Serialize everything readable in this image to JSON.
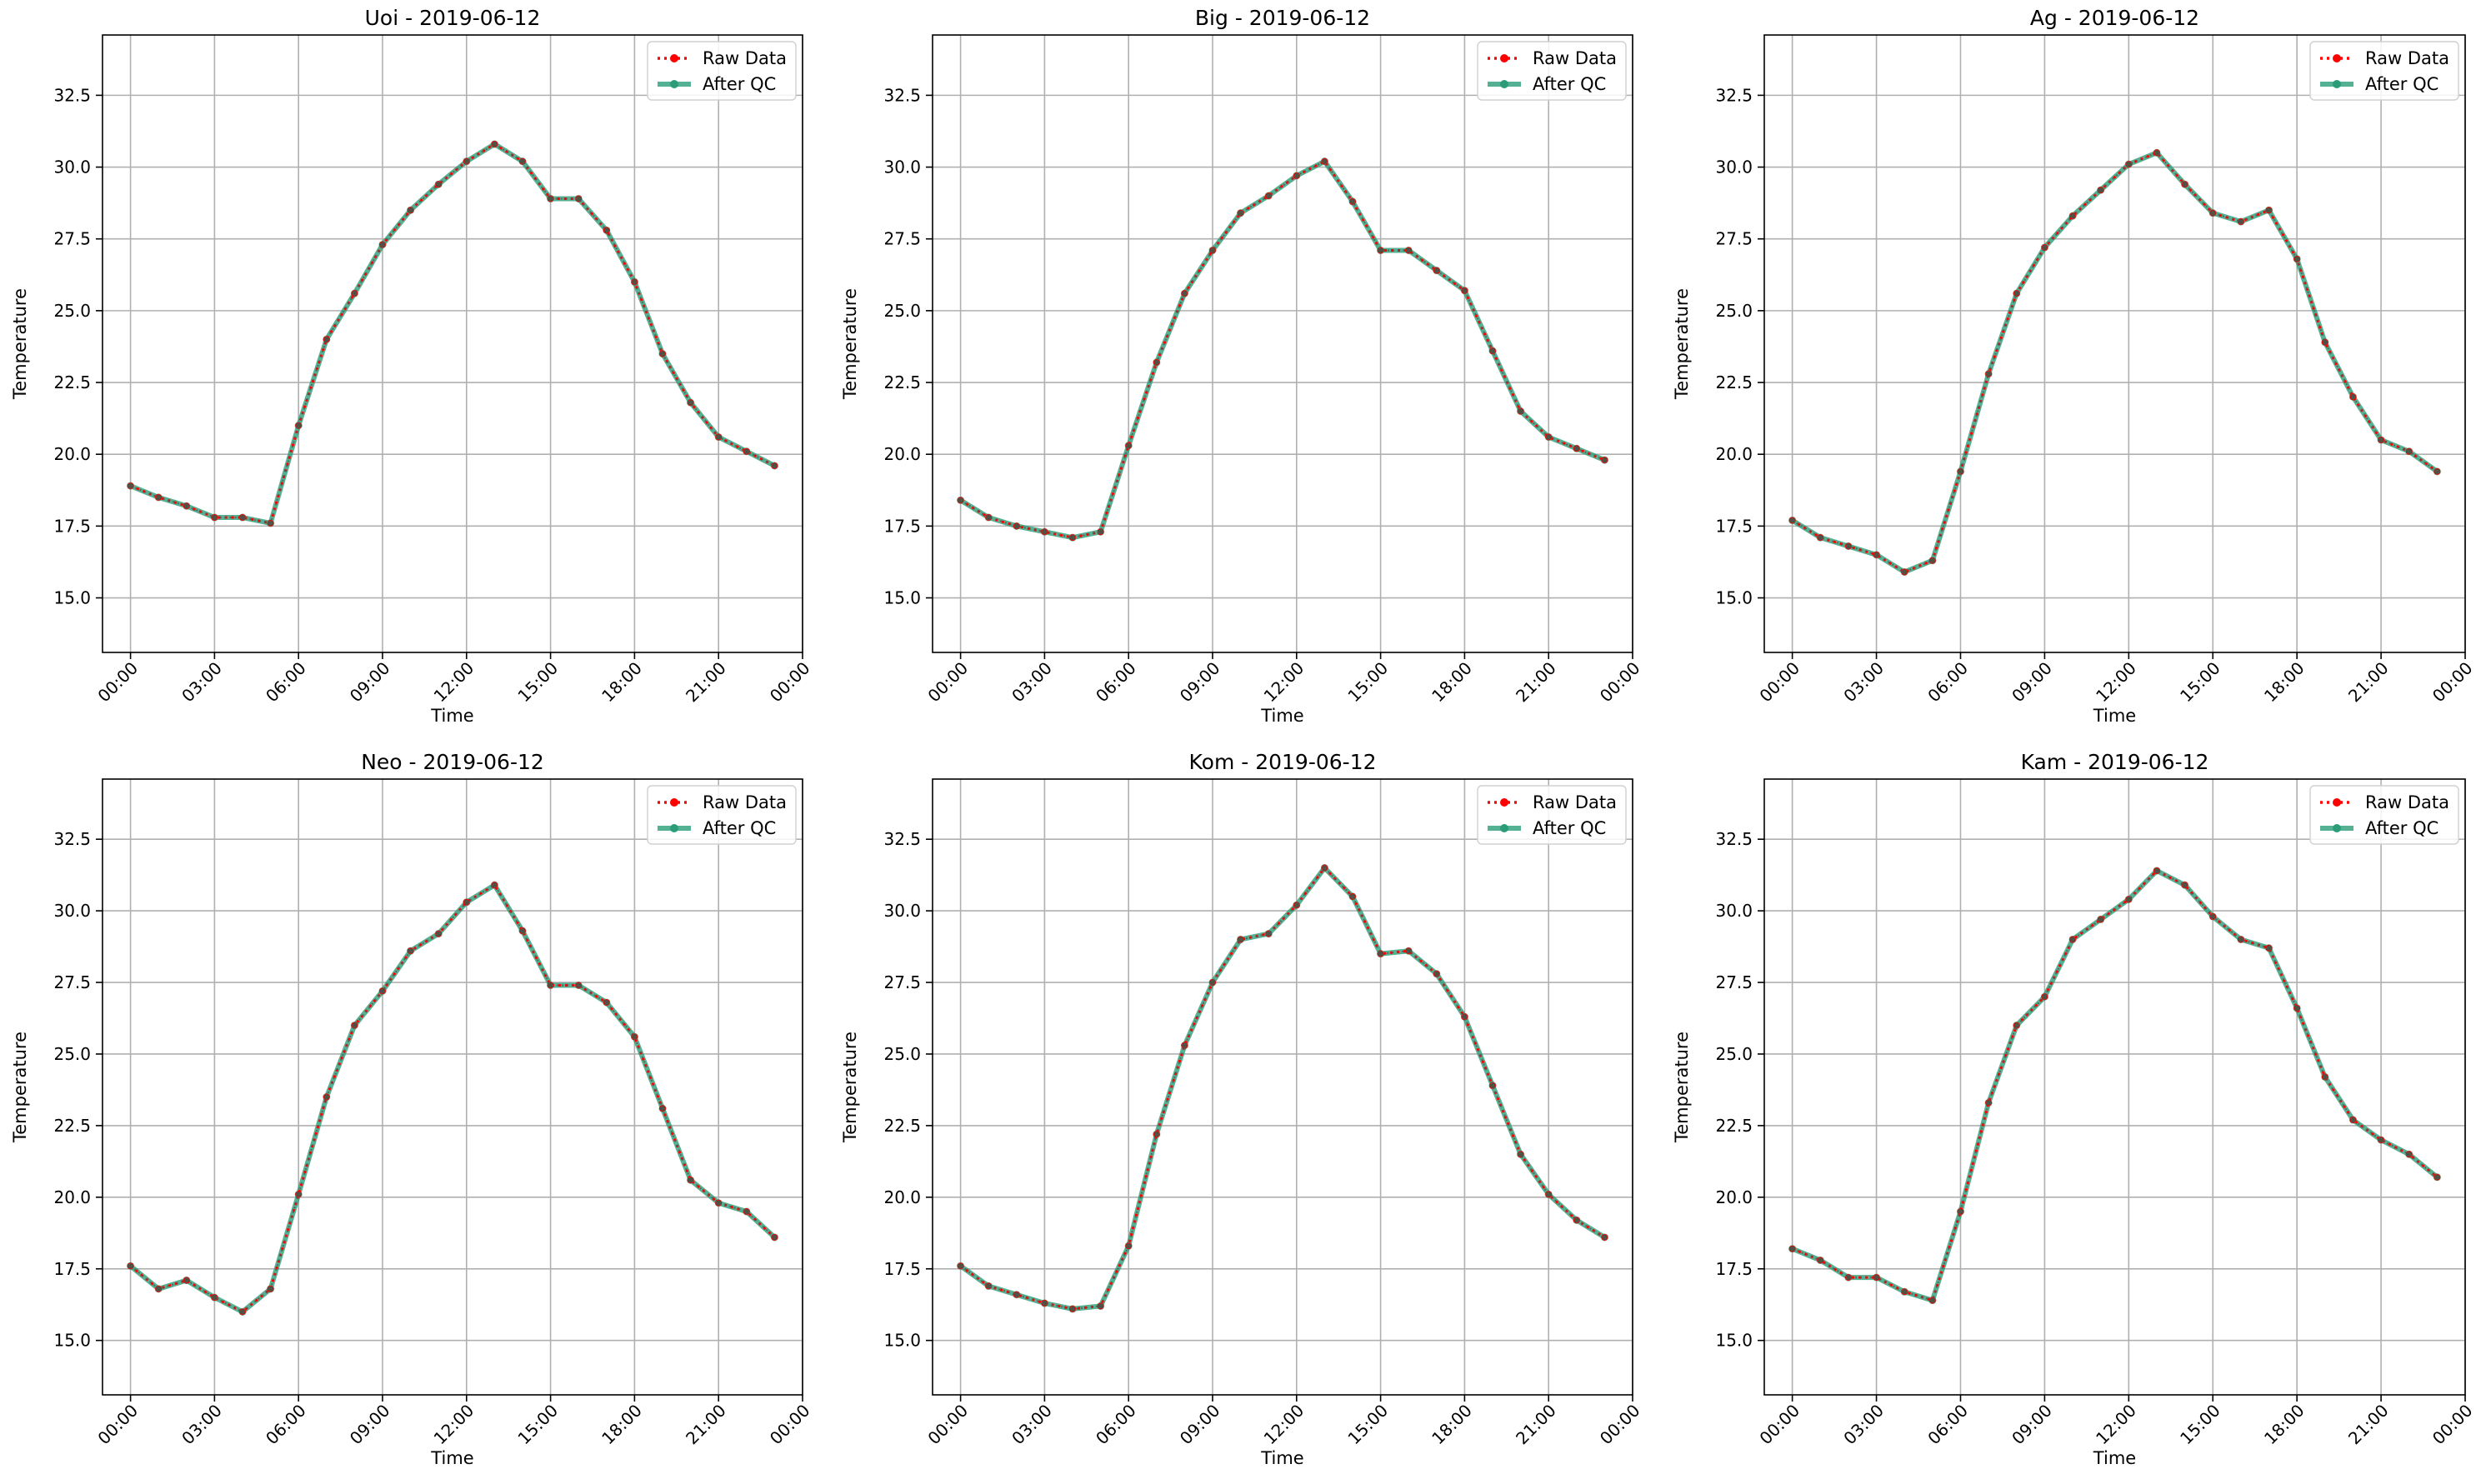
{
  "chart_data": [
    {
      "type": "line",
      "title": "Uoi - 2019-06-12",
      "xlabel": "Time",
      "ylabel": "Temperature",
      "x": [
        "00:00",
        "01:00",
        "02:00",
        "03:00",
        "04:00",
        "05:00",
        "06:00",
        "07:00",
        "08:00",
        "09:00",
        "10:00",
        "11:00",
        "12:00",
        "13:00",
        "14:00",
        "15:00",
        "16:00",
        "17:00",
        "18:00",
        "19:00",
        "20:00",
        "21:00",
        "22:00",
        "23:00"
      ],
      "xticks": [
        "00:00",
        "03:00",
        "06:00",
        "09:00",
        "12:00",
        "15:00",
        "18:00",
        "21:00",
        "00:00"
      ],
      "yticks": [
        "15.0",
        "17.5",
        "20.0",
        "22.5",
        "25.0",
        "27.5",
        "30.0",
        "32.5"
      ],
      "ylim": [
        13.1,
        34.6
      ],
      "grid": true,
      "legend_position": "top-right",
      "series": [
        {
          "name": "Raw Data",
          "style": "dotted",
          "color": "#ff0000",
          "values": [
            18.9,
            18.5,
            18.2,
            17.8,
            17.8,
            17.6,
            21.0,
            24.0,
            25.6,
            27.3,
            28.5,
            29.4,
            30.2,
            30.8,
            30.2,
            28.9,
            28.9,
            27.8,
            26.0,
            23.5,
            21.8,
            20.6,
            20.1,
            19.6
          ]
        },
        {
          "name": "After QC",
          "style": "solid",
          "color": "#2a9d78",
          "values": [
            18.9,
            18.5,
            18.2,
            17.8,
            17.8,
            17.6,
            21.0,
            24.0,
            25.6,
            27.3,
            28.5,
            29.4,
            30.2,
            30.8,
            30.2,
            28.9,
            28.9,
            27.8,
            26.0,
            23.5,
            21.8,
            20.6,
            20.1,
            19.6
          ]
        }
      ]
    },
    {
      "type": "line",
      "title": "Big - 2019-06-12",
      "xlabel": "Time",
      "ylabel": "Temperature",
      "x": [
        "00:00",
        "01:00",
        "02:00",
        "03:00",
        "04:00",
        "05:00",
        "06:00",
        "07:00",
        "08:00",
        "09:00",
        "10:00",
        "11:00",
        "12:00",
        "13:00",
        "14:00",
        "15:00",
        "16:00",
        "17:00",
        "18:00",
        "19:00",
        "20:00",
        "21:00",
        "22:00",
        "23:00"
      ],
      "xticks": [
        "00:00",
        "03:00",
        "06:00",
        "09:00",
        "12:00",
        "15:00",
        "18:00",
        "21:00",
        "00:00"
      ],
      "yticks": [
        "15.0",
        "17.5",
        "20.0",
        "22.5",
        "25.0",
        "27.5",
        "30.0",
        "32.5"
      ],
      "ylim": [
        13.1,
        34.6
      ],
      "grid": true,
      "legend_position": "top-right",
      "series": [
        {
          "name": "Raw Data",
          "style": "dotted",
          "color": "#ff0000",
          "values": [
            18.4,
            17.8,
            17.5,
            17.3,
            17.1,
            17.3,
            20.3,
            23.2,
            25.6,
            27.1,
            28.4,
            29.0,
            29.7,
            30.2,
            28.8,
            27.1,
            27.1,
            26.4,
            25.7,
            23.6,
            21.5,
            20.6,
            20.2,
            19.8
          ]
        },
        {
          "name": "After QC",
          "style": "solid",
          "color": "#2a9d78",
          "values": [
            18.4,
            17.8,
            17.5,
            17.3,
            17.1,
            17.3,
            20.3,
            23.2,
            25.6,
            27.1,
            28.4,
            29.0,
            29.7,
            30.2,
            28.8,
            27.1,
            27.1,
            26.4,
            25.7,
            23.6,
            21.5,
            20.6,
            20.2,
            19.8
          ]
        }
      ]
    },
    {
      "type": "line",
      "title": "Ag - 2019-06-12",
      "xlabel": "Time",
      "ylabel": "Temperature",
      "x": [
        "00:00",
        "01:00",
        "02:00",
        "03:00",
        "04:00",
        "05:00",
        "06:00",
        "07:00",
        "08:00",
        "09:00",
        "10:00",
        "11:00",
        "12:00",
        "13:00",
        "14:00",
        "15:00",
        "16:00",
        "17:00",
        "18:00",
        "19:00",
        "20:00",
        "21:00",
        "22:00",
        "23:00"
      ],
      "xticks": [
        "00:00",
        "03:00",
        "06:00",
        "09:00",
        "12:00",
        "15:00",
        "18:00",
        "21:00",
        "00:00"
      ],
      "yticks": [
        "15.0",
        "17.5",
        "20.0",
        "22.5",
        "25.0",
        "27.5",
        "30.0",
        "32.5"
      ],
      "ylim": [
        13.1,
        34.6
      ],
      "grid": true,
      "legend_position": "top-right",
      "series": [
        {
          "name": "Raw Data",
          "style": "dotted",
          "color": "#ff0000",
          "values": [
            17.7,
            17.1,
            16.8,
            16.5,
            15.9,
            16.3,
            19.4,
            22.8,
            25.6,
            27.2,
            28.3,
            29.2,
            30.1,
            30.5,
            29.4,
            28.4,
            28.1,
            28.5,
            26.8,
            23.9,
            22.0,
            20.5,
            20.1,
            19.4
          ]
        },
        {
          "name": "After QC",
          "style": "solid",
          "color": "#2a9d78",
          "values": [
            17.7,
            17.1,
            16.8,
            16.5,
            15.9,
            16.3,
            19.4,
            22.8,
            25.6,
            27.2,
            28.3,
            29.2,
            30.1,
            30.5,
            29.4,
            28.4,
            28.1,
            28.5,
            26.8,
            23.9,
            22.0,
            20.5,
            20.1,
            19.4
          ]
        }
      ]
    },
    {
      "type": "line",
      "title": "Neo - 2019-06-12",
      "xlabel": "Time",
      "ylabel": "Temperature",
      "x": [
        "00:00",
        "01:00",
        "02:00",
        "03:00",
        "04:00",
        "05:00",
        "06:00",
        "07:00",
        "08:00",
        "09:00",
        "10:00",
        "11:00",
        "12:00",
        "13:00",
        "14:00",
        "15:00",
        "16:00",
        "17:00",
        "18:00",
        "19:00",
        "20:00",
        "21:00",
        "22:00",
        "23:00"
      ],
      "xticks": [
        "00:00",
        "03:00",
        "06:00",
        "09:00",
        "12:00",
        "15:00",
        "18:00",
        "21:00",
        "00:00"
      ],
      "yticks": [
        "15.0",
        "17.5",
        "20.0",
        "22.5",
        "25.0",
        "27.5",
        "30.0",
        "32.5"
      ],
      "ylim": [
        13.1,
        34.6
      ],
      "grid": true,
      "legend_position": "top-right",
      "series": [
        {
          "name": "Raw Data",
          "style": "dotted",
          "color": "#ff0000",
          "values": [
            17.6,
            16.8,
            17.1,
            16.5,
            16.0,
            16.8,
            20.1,
            23.5,
            26.0,
            27.2,
            28.6,
            29.2,
            30.3,
            30.9,
            29.3,
            27.4,
            27.4,
            26.8,
            25.6,
            23.1,
            20.6,
            19.8,
            19.5,
            18.6
          ]
        },
        {
          "name": "After QC",
          "style": "solid",
          "color": "#2a9d78",
          "values": [
            17.6,
            16.8,
            17.1,
            16.5,
            16.0,
            16.8,
            20.1,
            23.5,
            26.0,
            27.2,
            28.6,
            29.2,
            30.3,
            30.9,
            29.3,
            27.4,
            27.4,
            26.8,
            25.6,
            23.1,
            20.6,
            19.8,
            19.5,
            18.6
          ]
        }
      ]
    },
    {
      "type": "line",
      "title": "Kom - 2019-06-12",
      "xlabel": "Time",
      "ylabel": "Temperature",
      "x": [
        "00:00",
        "01:00",
        "02:00",
        "03:00",
        "04:00",
        "05:00",
        "06:00",
        "07:00",
        "08:00",
        "09:00",
        "10:00",
        "11:00",
        "12:00",
        "13:00",
        "14:00",
        "15:00",
        "16:00",
        "17:00",
        "18:00",
        "19:00",
        "20:00",
        "21:00",
        "22:00",
        "23:00"
      ],
      "xticks": [
        "00:00",
        "03:00",
        "06:00",
        "09:00",
        "12:00",
        "15:00",
        "18:00",
        "21:00",
        "00:00"
      ],
      "yticks": [
        "15.0",
        "17.5",
        "20.0",
        "22.5",
        "25.0",
        "27.5",
        "30.0",
        "32.5"
      ],
      "ylim": [
        13.1,
        34.6
      ],
      "grid": true,
      "legend_position": "top-right",
      "series": [
        {
          "name": "Raw Data",
          "style": "dotted",
          "color": "#ff0000",
          "values": [
            17.6,
            16.9,
            16.6,
            16.3,
            16.1,
            16.2,
            18.3,
            22.2,
            25.3,
            27.5,
            29.0,
            29.2,
            30.2,
            31.5,
            30.5,
            28.5,
            28.6,
            27.8,
            26.3,
            23.9,
            21.5,
            20.1,
            19.2,
            18.6
          ]
        },
        {
          "name": "After QC",
          "style": "solid",
          "color": "#2a9d78",
          "values": [
            17.6,
            16.9,
            16.6,
            16.3,
            16.1,
            16.2,
            18.3,
            22.2,
            25.3,
            27.5,
            29.0,
            29.2,
            30.2,
            31.5,
            30.5,
            28.5,
            28.6,
            27.8,
            26.3,
            23.9,
            21.5,
            20.1,
            19.2,
            18.6
          ]
        }
      ]
    },
    {
      "type": "line",
      "title": "Kam - 2019-06-12",
      "xlabel": "Time",
      "ylabel": "Temperature",
      "x": [
        "00:00",
        "01:00",
        "02:00",
        "03:00",
        "04:00",
        "05:00",
        "06:00",
        "07:00",
        "08:00",
        "09:00",
        "10:00",
        "11:00",
        "12:00",
        "13:00",
        "14:00",
        "15:00",
        "16:00",
        "17:00",
        "18:00",
        "19:00",
        "20:00",
        "21:00",
        "22:00",
        "23:00"
      ],
      "xticks": [
        "00:00",
        "03:00",
        "06:00",
        "09:00",
        "12:00",
        "15:00",
        "18:00",
        "21:00",
        "00:00"
      ],
      "yticks": [
        "15.0",
        "17.5",
        "20.0",
        "22.5",
        "25.0",
        "27.5",
        "30.0",
        "32.5"
      ],
      "ylim": [
        13.1,
        34.6
      ],
      "grid": true,
      "legend_position": "top-right",
      "series": [
        {
          "name": "Raw Data",
          "style": "dotted",
          "color": "#ff0000",
          "values": [
            18.2,
            17.8,
            17.2,
            17.2,
            16.7,
            16.4,
            19.5,
            23.3,
            26.0,
            27.0,
            29.0,
            29.7,
            30.4,
            31.4,
            30.9,
            29.8,
            29.0,
            28.7,
            26.6,
            24.2,
            22.7,
            22.0,
            21.5,
            20.7
          ]
        },
        {
          "name": "After QC",
          "style": "solid",
          "color": "#2a9d78",
          "values": [
            18.2,
            17.8,
            17.2,
            17.2,
            16.7,
            16.4,
            19.5,
            23.3,
            26.0,
            27.0,
            29.0,
            29.7,
            30.4,
            31.4,
            30.9,
            29.8,
            29.0,
            28.7,
            26.6,
            24.2,
            22.7,
            22.0,
            21.5,
            20.7
          ]
        }
      ]
    }
  ]
}
